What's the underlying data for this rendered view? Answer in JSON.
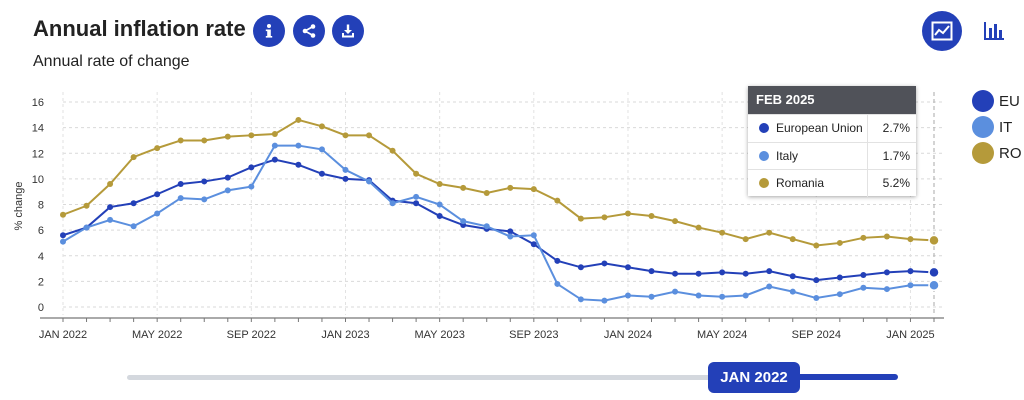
{
  "header": {
    "title": "Annual inflation rate",
    "subtitle": "Annual rate of change"
  },
  "chart_data": {
    "type": "line",
    "ylabel": "% change",
    "xlabel": "",
    "ylim": [
      0,
      16
    ],
    "yticks": [
      0,
      2,
      4,
      6,
      8,
      10,
      12,
      14,
      16
    ],
    "x": [
      "2022-01",
      "2022-02",
      "2022-03",
      "2022-04",
      "2022-05",
      "2022-06",
      "2022-07",
      "2022-08",
      "2022-09",
      "2022-10",
      "2022-11",
      "2022-12",
      "2023-01",
      "2023-02",
      "2023-03",
      "2023-04",
      "2023-05",
      "2023-06",
      "2023-07",
      "2023-08",
      "2023-09",
      "2023-10",
      "2023-11",
      "2023-12",
      "2024-01",
      "2024-02",
      "2024-03",
      "2024-04",
      "2024-05",
      "2024-06",
      "2024-07",
      "2024-08",
      "2024-09",
      "2024-10",
      "2024-11",
      "2024-12",
      "2025-01",
      "2025-02"
    ],
    "xtick_labels": [
      {
        "month": "2022-01",
        "label": "JAN 2022"
      },
      {
        "month": "2022-05",
        "label": "MAY 2022"
      },
      {
        "month": "2022-09",
        "label": "SEP 2022"
      },
      {
        "month": "2023-01",
        "label": "JAN 2023"
      },
      {
        "month": "2023-05",
        "label": "MAY 2023"
      },
      {
        "month": "2023-09",
        "label": "SEP 2023"
      },
      {
        "month": "2024-01",
        "label": "JAN 2024"
      },
      {
        "month": "2024-05",
        "label": "MAY 2024"
      },
      {
        "month": "2024-09",
        "label": "SEP 2024"
      },
      {
        "month": "2025-01",
        "label": "JAN 2025"
      }
    ],
    "grid": true,
    "legend_position": "right",
    "series": [
      {
        "name": "EU",
        "full_name": "European Union",
        "color": "#2340b8",
        "values": [
          5.6,
          6.2,
          7.8,
          8.1,
          8.8,
          9.6,
          9.8,
          10.1,
          10.9,
          11.5,
          11.1,
          10.4,
          10.0,
          9.9,
          8.3,
          8.1,
          7.1,
          6.4,
          6.1,
          5.9,
          4.9,
          3.6,
          3.1,
          3.4,
          3.1,
          2.8,
          2.6,
          2.6,
          2.7,
          2.6,
          2.8,
          2.4,
          2.1,
          2.3,
          2.5,
          2.7,
          2.8,
          2.7
        ]
      },
      {
        "name": "IT",
        "full_name": "Italy",
        "color": "#5b8fde",
        "values": [
          5.1,
          6.2,
          6.8,
          6.3,
          7.3,
          8.5,
          8.4,
          9.1,
          9.4,
          12.6,
          12.6,
          12.3,
          10.7,
          9.8,
          8.1,
          8.6,
          8.0,
          6.7,
          6.3,
          5.5,
          5.6,
          1.8,
          0.6,
          0.5,
          0.9,
          0.8,
          1.2,
          0.9,
          0.8,
          0.9,
          1.6,
          1.2,
          0.7,
          1.0,
          1.5,
          1.4,
          1.7,
          1.7
        ]
      },
      {
        "name": "RO",
        "full_name": "Romania",
        "color": "#b59a3a",
        "values": [
          7.2,
          7.9,
          9.6,
          11.7,
          12.4,
          13.0,
          13.0,
          13.3,
          13.4,
          13.5,
          14.6,
          14.1,
          13.4,
          13.4,
          12.2,
          10.4,
          9.6,
          9.3,
          8.9,
          9.3,
          9.2,
          8.3,
          6.9,
          7.0,
          7.3,
          7.1,
          6.7,
          6.2,
          5.8,
          5.3,
          5.8,
          5.3,
          4.8,
          5.0,
          5.4,
          5.5,
          5.3,
          5.2
        ]
      }
    ]
  },
  "tooltip": {
    "title": "FEB 2025",
    "rows": [
      {
        "name": "European Union",
        "value": "2.7%",
        "color": "#2340b8"
      },
      {
        "name": "Italy",
        "value": "1.7%",
        "color": "#5b8fde"
      },
      {
        "name": "Romania",
        "value": "5.2%",
        "color": "#b59a3a"
      }
    ]
  },
  "legend": [
    {
      "label": "EU",
      "color": "#2340b8"
    },
    {
      "label": "IT",
      "color": "#5b8fde"
    },
    {
      "label": "RO",
      "color": "#b59a3a"
    }
  ],
  "slider": {
    "handle_label": "JAN 2022"
  },
  "icons": {
    "info": "info-icon",
    "share": "share-icon",
    "download": "download-icon",
    "line_view": "line-chart-icon",
    "bar_view": "bar-chart-icon"
  },
  "colors": {
    "accent": "#2340b8",
    "tooltip_header": "#505259"
  }
}
